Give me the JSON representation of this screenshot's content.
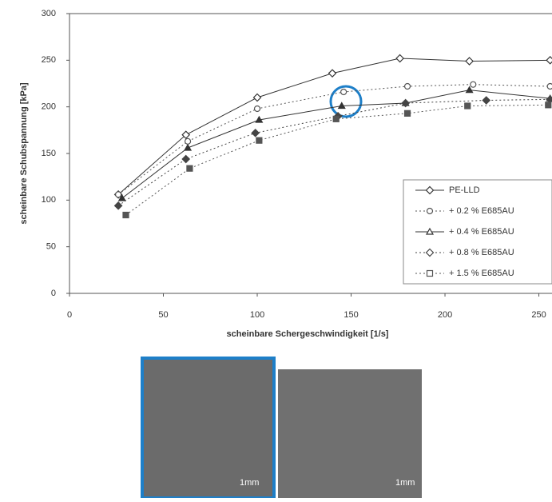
{
  "chart_data": {
    "type": "line",
    "x_label": "scheinbare Schergeschwindigkeit [1/s]",
    "y_label": "scheinbare Schubspannung [kPa]",
    "xlim": [
      0,
      257
    ],
    "xticks": [
      0,
      50,
      100,
      150,
      200,
      250
    ],
    "ylim": [
      0,
      300
    ],
    "yticks": [
      0,
      50,
      100,
      150,
      200,
      250,
      300
    ],
    "grid": false,
    "legend_position": "lower right",
    "series": [
      {
        "name": "PE-LLD",
        "color": "#333333",
        "marker": "diamond",
        "dash": "solid",
        "filled": false,
        "x": [
          26,
          62,
          100,
          140,
          176,
          213,
          256
        ],
        "values": [
          106,
          170,
          210,
          236,
          252,
          249,
          250
        ]
      },
      {
        "name": "+ 0.2 % E685AU",
        "color": "#555555",
        "marker": "circle",
        "dash": "dotted",
        "filled": false,
        "x": [
          26,
          63,
          100,
          146,
          180,
          215,
          256
        ],
        "values": [
          106,
          163,
          198,
          216,
          222,
          224,
          222
        ]
      },
      {
        "name": "+ 0.4 % E685AU",
        "color": "#333333",
        "marker": "triangle",
        "dash": "solid",
        "filled": true,
        "x": [
          28,
          63,
          101,
          145,
          179,
          213,
          256
        ],
        "values": [
          102,
          156,
          186,
          201,
          204,
          218,
          209
        ]
      },
      {
        "name": "+ 0.8 % E685AU",
        "color": "#444444",
        "marker": "diamond",
        "dash": "dotted",
        "filled": true,
        "x": [
          26,
          62,
          99,
          143,
          179,
          222,
          256
        ],
        "values": [
          94,
          144,
          172,
          190,
          204,
          207,
          208
        ]
      },
      {
        "name": "+ 1.5 % E685AU",
        "color": "#555555",
        "marker": "square",
        "dash": "dotted",
        "filled": true,
        "x": [
          30,
          64,
          101,
          142,
          180,
          212,
          255
        ],
        "values": [
          84,
          134,
          164,
          187,
          193,
          201,
          202
        ]
      }
    ]
  },
  "images": [
    {
      "scale_label": "1mm"
    },
    {
      "scale_label": "1mm"
    }
  ]
}
